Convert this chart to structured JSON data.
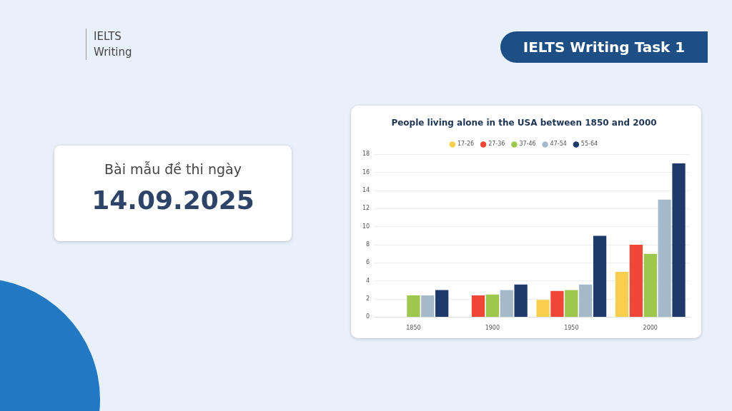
{
  "chart_data": {
    "type": "bar",
    "title": "People living alone in the USA between 1850 and 2000",
    "categories": [
      "1850",
      "1900",
      "1950",
      "2000"
    ],
    "series": [
      {
        "name": "17-26",
        "color": "#f7cf4d",
        "values": [
          null,
          null,
          1.9,
          5
        ]
      },
      {
        "name": "27-36",
        "color": "#ef4638",
        "values": [
          null,
          2.4,
          2.9,
          8
        ]
      },
      {
        "name": "37-46",
        "color": "#9ec74e",
        "values": [
          2.4,
          2.5,
          3,
          7
        ]
      },
      {
        "name": "47-54",
        "color": "#a4bacb",
        "values": [
          2.4,
          3,
          3.6,
          13
        ]
      },
      {
        "name": "55-64",
        "color": "#1d3a6b",
        "values": [
          3,
          3.6,
          9,
          17
        ]
      }
    ],
    "ylim": [
      0,
      18
    ],
    "yticks": [
      0,
      2,
      4,
      6,
      8,
      10,
      12,
      14,
      16,
      18
    ],
    "grid": "y",
    "legend": "top",
    "annotations": [
      "IELTS Writing",
      "IELTS Writing Task 1",
      "Bài mẫu đề thi ngày",
      "14.09.2025"
    ]
  }
}
